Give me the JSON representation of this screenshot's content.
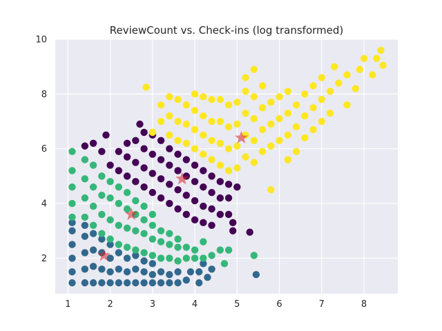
{
  "chart_data": {
    "type": "scatter",
    "title": "ReviewCount vs. Check-ins (log transformed)",
    "xlabel": "",
    "ylabel": "",
    "xlim": [
      0.7,
      8.8
    ],
    "ylim": [
      0.7,
      10
    ],
    "xticks": [
      "1",
      "2",
      "3",
      "4",
      "5",
      "6",
      "7",
      "8"
    ],
    "yticks": [
      "2",
      "4",
      "6",
      "8",
      "10"
    ],
    "grid": true,
    "legend": "none",
    "background": "#eaeaf2",
    "series": [
      {
        "color": "#31688e",
        "points": [
          [
            1.1,
            1.1
          ],
          [
            1.1,
            1.5
          ],
          [
            1.1,
            2.0
          ],
          [
            1.1,
            2.5
          ],
          [
            1.1,
            3.0
          ],
          [
            1.1,
            3.3
          ],
          [
            1.4,
            1.1
          ],
          [
            1.4,
            1.6
          ],
          [
            1.4,
            2.2
          ],
          [
            1.4,
            2.8
          ],
          [
            1.4,
            3.2
          ],
          [
            1.6,
            1.1
          ],
          [
            1.6,
            1.7
          ],
          [
            1.6,
            2.3
          ],
          [
            1.6,
            2.9
          ],
          [
            1.8,
            1.1
          ],
          [
            1.8,
            1.6
          ],
          [
            1.8,
            2.2
          ],
          [
            1.8,
            2.7
          ],
          [
            2.0,
            1.1
          ],
          [
            2.0,
            1.5
          ],
          [
            2.0,
            2.0
          ],
          [
            2.0,
            2.5
          ],
          [
            2.2,
            1.1
          ],
          [
            2.2,
            1.6
          ],
          [
            2.2,
            2.2
          ],
          [
            2.4,
            1.1
          ],
          [
            2.4,
            1.5
          ],
          [
            2.4,
            2.0
          ],
          [
            2.6,
            1.1
          ],
          [
            2.6,
            1.6
          ],
          [
            2.6,
            2.1
          ],
          [
            2.8,
            1.1
          ],
          [
            2.8,
            1.5
          ],
          [
            2.8,
            1.9
          ],
          [
            3.0,
            1.1
          ],
          [
            3.0,
            1.4
          ],
          [
            3.0,
            1.8
          ],
          [
            3.2,
            1.1
          ],
          [
            3.2,
            1.5
          ],
          [
            3.4,
            1.1
          ],
          [
            3.4,
            1.4
          ],
          [
            3.6,
            1.1
          ],
          [
            3.6,
            1.5
          ],
          [
            3.8,
            1.2
          ],
          [
            3.9,
            1.5
          ],
          [
            4.1,
            1.1
          ],
          [
            4.1,
            1.5
          ],
          [
            4.2,
            1.8
          ],
          [
            4.3,
            1.3
          ],
          [
            4.4,
            1.6
          ],
          [
            5.45,
            1.4
          ]
        ],
        "centroid": [
          1.85,
          2.1
        ]
      },
      {
        "color": "#35b779",
        "points": [
          [
            1.1,
            3.5
          ],
          [
            1.1,
            4.0
          ],
          [
            1.1,
            4.6
          ],
          [
            1.1,
            5.2
          ],
          [
            1.1,
            5.9
          ],
          [
            1.4,
            3.5
          ],
          [
            1.4,
            4.2
          ],
          [
            1.4,
            4.9
          ],
          [
            1.4,
            5.6
          ],
          [
            1.6,
            3.2
          ],
          [
            1.6,
            3.9
          ],
          [
            1.6,
            4.6
          ],
          [
            1.6,
            5.4
          ],
          [
            1.8,
            2.9
          ],
          [
            1.8,
            3.6
          ],
          [
            1.8,
            4.3
          ],
          [
            1.8,
            5.0
          ],
          [
            2.0,
            2.7
          ],
          [
            2.0,
            3.4
          ],
          [
            2.0,
            4.2
          ],
          [
            2.0,
            4.8
          ],
          [
            2.2,
            2.5
          ],
          [
            2.2,
            3.2
          ],
          [
            2.2,
            4.0
          ],
          [
            2.2,
            4.6
          ],
          [
            2.4,
            2.4
          ],
          [
            2.4,
            3.1
          ],
          [
            2.4,
            3.8
          ],
          [
            2.4,
            4.4
          ],
          [
            2.6,
            2.3
          ],
          [
            2.6,
            3.0
          ],
          [
            2.6,
            3.6
          ],
          [
            2.6,
            4.1
          ],
          [
            2.8,
            2.2
          ],
          [
            2.8,
            2.9
          ],
          [
            2.8,
            3.4
          ],
          [
            2.8,
            3.9
          ],
          [
            3.0,
            2.1
          ],
          [
            3.0,
            2.7
          ],
          [
            3.0,
            3.2
          ],
          [
            3.0,
            3.6
          ],
          [
            3.2,
            2.0
          ],
          [
            3.2,
            2.6
          ],
          [
            3.2,
            3.0
          ],
          [
            3.4,
            2.0
          ],
          [
            3.4,
            2.5
          ],
          [
            3.4,
            2.9
          ],
          [
            3.6,
            1.9
          ],
          [
            3.6,
            2.4
          ],
          [
            3.6,
            2.7
          ],
          [
            3.8,
            2.0
          ],
          [
            3.8,
            2.4
          ],
          [
            4.0,
            2.0
          ],
          [
            4.0,
            2.3
          ],
          [
            4.2,
            2.0
          ],
          [
            4.2,
            2.6
          ],
          [
            4.4,
            2.1
          ],
          [
            4.6,
            2.3
          ],
          [
            4.7,
            1.8
          ],
          [
            4.8,
            2.3
          ],
          [
            5.4,
            2.1
          ]
        ],
        "centroid": [
          2.5,
          3.6
        ]
      },
      {
        "color": "#440154",
        "points": [
          [
            1.4,
            6.1
          ],
          [
            1.6,
            6.2
          ],
          [
            1.8,
            5.9
          ],
          [
            1.9,
            6.5
          ],
          [
            2.0,
            5.4
          ],
          [
            2.2,
            5.2
          ],
          [
            2.2,
            5.9
          ],
          [
            2.4,
            5.0
          ],
          [
            2.4,
            5.7
          ],
          [
            2.4,
            6.2
          ],
          [
            2.6,
            4.8
          ],
          [
            2.6,
            5.5
          ],
          [
            2.6,
            6.3
          ],
          [
            2.7,
            6.9
          ],
          [
            2.8,
            4.6
          ],
          [
            2.8,
            5.3
          ],
          [
            2.8,
            6.0
          ],
          [
            2.8,
            6.6
          ],
          [
            3.0,
            4.4
          ],
          [
            3.0,
            5.1
          ],
          [
            3.0,
            5.8
          ],
          [
            3.0,
            6.5
          ],
          [
            3.2,
            4.2
          ],
          [
            3.2,
            4.9
          ],
          [
            3.2,
            5.6
          ],
          [
            3.2,
            6.3
          ],
          [
            3.4,
            4.0
          ],
          [
            3.4,
            4.7
          ],
          [
            3.4,
            5.4
          ],
          [
            3.4,
            6.0
          ],
          [
            3.6,
            3.8
          ],
          [
            3.6,
            4.5
          ],
          [
            3.6,
            5.2
          ],
          [
            3.6,
            5.8
          ],
          [
            3.8,
            3.6
          ],
          [
            3.8,
            4.3
          ],
          [
            3.8,
            5.0
          ],
          [
            3.8,
            5.6
          ],
          [
            4.0,
            3.4
          ],
          [
            4.0,
            4.1
          ],
          [
            4.0,
            4.8
          ],
          [
            4.0,
            5.4
          ],
          [
            4.2,
            3.3
          ],
          [
            4.2,
            3.9
          ],
          [
            4.2,
            4.6
          ],
          [
            4.2,
            5.2
          ],
          [
            4.4,
            3.2
          ],
          [
            4.4,
            3.8
          ],
          [
            4.4,
            4.4
          ],
          [
            4.4,
            5.0
          ],
          [
            4.6,
            3.6
          ],
          [
            4.6,
            4.2
          ],
          [
            4.6,
            4.8
          ],
          [
            4.8,
            3.6
          ],
          [
            4.8,
            4.2
          ],
          [
            4.8,
            4.7
          ],
          [
            4.9,
            3.3
          ],
          [
            4.9,
            3.0
          ],
          [
            5.0,
            4.6
          ],
          [
            5.3,
            2.95
          ]
        ],
        "centroid": [
          3.7,
          4.9
        ]
      },
      {
        "color": "#fde725",
        "points": [
          [
            2.85,
            8.25
          ],
          [
            3.0,
            6.6
          ],
          [
            3.2,
            7.0
          ],
          [
            3.2,
            7.6
          ],
          [
            3.4,
            6.5
          ],
          [
            3.4,
            7.2
          ],
          [
            3.4,
            7.9
          ],
          [
            3.6,
            6.3
          ],
          [
            3.6,
            7.0
          ],
          [
            3.6,
            7.8
          ],
          [
            3.8,
            6.2
          ],
          [
            3.8,
            6.9
          ],
          [
            3.8,
            7.6
          ],
          [
            4.0,
            6.0
          ],
          [
            4.0,
            6.7
          ],
          [
            4.0,
            7.4
          ],
          [
            4.0,
            8.0
          ],
          [
            4.2,
            5.8
          ],
          [
            4.2,
            6.5
          ],
          [
            4.2,
            7.2
          ],
          [
            4.2,
            7.9
          ],
          [
            4.4,
            5.6
          ],
          [
            4.4,
            6.3
          ],
          [
            4.4,
            7.0
          ],
          [
            4.4,
            7.8
          ],
          [
            4.6,
            5.4
          ],
          [
            4.6,
            6.2
          ],
          [
            4.6,
            7.0
          ],
          [
            4.6,
            7.8
          ],
          [
            4.8,
            5.2
          ],
          [
            4.8,
            6.0
          ],
          [
            4.8,
            6.8
          ],
          [
            4.8,
            7.6
          ],
          [
            5.0,
            5.3
          ],
          [
            5.0,
            6.1
          ],
          [
            5.0,
            6.9
          ],
          [
            5.0,
            7.7
          ],
          [
            5.2,
            5.7
          ],
          [
            5.2,
            6.5
          ],
          [
            5.2,
            7.3
          ],
          [
            5.2,
            8.1
          ],
          [
            5.2,
            8.6
          ],
          [
            5.4,
            5.5
          ],
          [
            5.4,
            6.3
          ],
          [
            5.4,
            7.1
          ],
          [
            5.4,
            7.9
          ],
          [
            5.4,
            8.9
          ],
          [
            5.6,
            5.9
          ],
          [
            5.6,
            6.7
          ],
          [
            5.6,
            7.5
          ],
          [
            5.6,
            8.3
          ],
          [
            5.8,
            6.1
          ],
          [
            5.8,
            6.9
          ],
          [
            5.8,
            7.7
          ],
          [
            5.8,
            4.5
          ],
          [
            6.0,
            6.3
          ],
          [
            6.0,
            7.1
          ],
          [
            6.0,
            7.9
          ],
          [
            6.2,
            5.6
          ],
          [
            6.2,
            6.5
          ],
          [
            6.2,
            7.3
          ],
          [
            6.2,
            8.1
          ],
          [
            6.4,
            5.9
          ],
          [
            6.4,
            6.8
          ],
          [
            6.4,
            7.6
          ],
          [
            6.6,
            6.4
          ],
          [
            6.6,
            7.2
          ],
          [
            6.6,
            8.0
          ],
          [
            6.8,
            6.7
          ],
          [
            6.8,
            7.5
          ],
          [
            6.8,
            8.3
          ],
          [
            7.0,
            7.0
          ],
          [
            7.0,
            7.8
          ],
          [
            7.0,
            8.6
          ],
          [
            7.2,
            7.3
          ],
          [
            7.2,
            8.1
          ],
          [
            7.3,
            9.0
          ],
          [
            7.4,
            8.4
          ],
          [
            7.6,
            7.6
          ],
          [
            7.6,
            8.7
          ],
          [
            7.8,
            8.2
          ],
          [
            7.9,
            8.9
          ],
          [
            8.0,
            9.3
          ],
          [
            8.2,
            8.7
          ],
          [
            8.3,
            9.3
          ],
          [
            8.4,
            9.6
          ],
          [
            8.45,
            9.05
          ]
        ],
        "centroid": [
          5.1,
          6.4
        ]
      }
    ],
    "centroid_color": "#d62728"
  }
}
